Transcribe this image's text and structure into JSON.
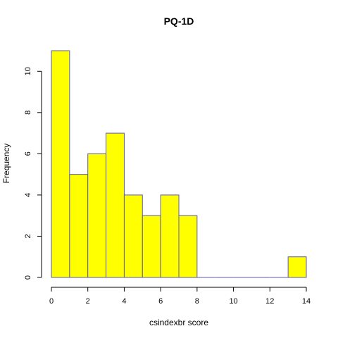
{
  "chart_data": {
    "type": "bar",
    "subtype": "histogram",
    "title": "PQ-1D",
    "xlabel": "csindexbr score",
    "ylabel": "Frequency",
    "bins": [
      {
        "x0": 0,
        "x1": 1,
        "count": 11
      },
      {
        "x0": 1,
        "x1": 2,
        "count": 5
      },
      {
        "x0": 2,
        "x1": 3,
        "count": 6
      },
      {
        "x0": 3,
        "x1": 4,
        "count": 7
      },
      {
        "x0": 4,
        "x1": 5,
        "count": 4
      },
      {
        "x0": 5,
        "x1": 6,
        "count": 3
      },
      {
        "x0": 6,
        "x1": 7,
        "count": 4
      },
      {
        "x0": 7,
        "x1": 8,
        "count": 3
      },
      {
        "x0": 8,
        "x1": 9,
        "count": 0
      },
      {
        "x0": 9,
        "x1": 10,
        "count": 0
      },
      {
        "x0": 10,
        "x1": 11,
        "count": 0
      },
      {
        "x0": 11,
        "x1": 12,
        "count": 0
      },
      {
        "x0": 12,
        "x1": 13,
        "count": 0
      },
      {
        "x0": 13,
        "x1": 14,
        "count": 1
      }
    ],
    "xlim": [
      0,
      14
    ],
    "ylim": [
      0,
      11
    ],
    "x_ticks": [
      0,
      2,
      4,
      6,
      8,
      10,
      12,
      14
    ],
    "y_ticks": [
      0,
      2,
      4,
      6,
      8,
      10
    ],
    "grid": false,
    "bar_fill": "#ffff00",
    "bar_border": "#5a5ab4"
  }
}
